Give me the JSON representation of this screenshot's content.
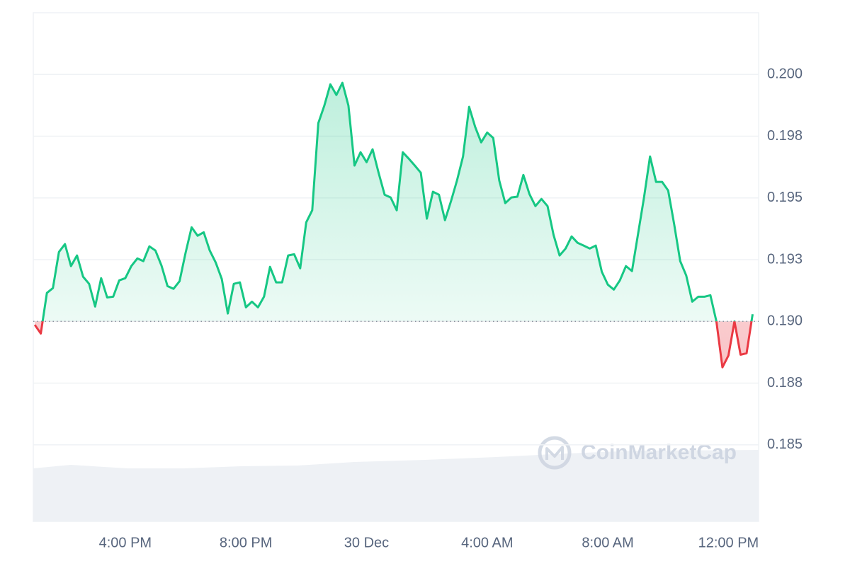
{
  "chart_data": {
    "type": "baseline-area",
    "watermark": "CoinMarketCap",
    "x": [
      13.0,
      13.2,
      13.4,
      13.6,
      13.8,
      14.0,
      14.2,
      14.4,
      14.6,
      14.8,
      15.0,
      15.2,
      15.4,
      15.6,
      15.8,
      16.0,
      16.2,
      16.4,
      16.6,
      16.8,
      17.0,
      17.2,
      17.4,
      17.6,
      17.8,
      18.0,
      18.2,
      18.4,
      18.6,
      18.8,
      19.0,
      19.2,
      19.4,
      19.6,
      19.8,
      20.0,
      20.2,
      20.4,
      20.6,
      20.8,
      21.0,
      21.2,
      21.4,
      21.6,
      21.8,
      22.0,
      22.2,
      22.4,
      22.6,
      22.8,
      23.0,
      23.2,
      23.4,
      23.6,
      23.8,
      24.0,
      24.2,
      24.4,
      24.6,
      24.8,
      25.0,
      25.2,
      25.4,
      25.6,
      25.8,
      26.0,
      26.2,
      26.4,
      26.6,
      26.8,
      27.0,
      27.2,
      27.4,
      27.6,
      27.8,
      28.0,
      28.2,
      28.4,
      28.6,
      28.8,
      29.0,
      29.2,
      29.4,
      29.6,
      29.8,
      30.0,
      30.2,
      30.4,
      30.6,
      30.8,
      31.0,
      31.2,
      31.4,
      31.6,
      31.8,
      32.0,
      32.2,
      32.4,
      32.6,
      32.8,
      33.0,
      33.2,
      33.4,
      33.6,
      33.8,
      34.0,
      34.2,
      34.4,
      34.6,
      34.8,
      35.0,
      35.2,
      35.4,
      35.6,
      35.8,
      36.0,
      36.2,
      36.4,
      36.6,
      36.8
    ],
    "values": [
      0.18986,
      0.18951,
      0.19115,
      0.19135,
      0.19281,
      0.19313,
      0.19224,
      0.19267,
      0.19181,
      0.19152,
      0.1906,
      0.19175,
      0.19097,
      0.191,
      0.19166,
      0.19175,
      0.19224,
      0.19255,
      0.19244,
      0.19304,
      0.19287,
      0.19226,
      0.19143,
      0.19132,
      0.19163,
      0.19278,
      0.19381,
      0.19347,
      0.19361,
      0.19287,
      0.19238,
      0.19172,
      0.19032,
      0.19152,
      0.19158,
      0.19057,
      0.1908,
      0.19057,
      0.191,
      0.19221,
      0.19158,
      0.19158,
      0.19267,
      0.19272,
      0.19215,
      0.19401,
      0.1945,
      0.19803,
      0.19874,
      0.1996,
      0.19917,
      0.19966,
      0.19874,
      0.19631,
      0.19685,
      0.19645,
      0.19697,
      0.19602,
      0.19513,
      0.19502,
      0.1945,
      0.19685,
      0.19659,
      0.19631,
      0.19602,
      0.19416,
      0.19525,
      0.19513,
      0.1941,
      0.19487,
      0.19571,
      0.19668,
      0.19869,
      0.19788,
      0.19725,
      0.19765,
      0.19743,
      0.19571,
      0.19479,
      0.19502,
      0.19505,
      0.19593,
      0.19516,
      0.19467,
      0.19496,
      0.19467,
      0.1935,
      0.19267,
      0.19295,
      0.19344,
      0.19318,
      0.19307,
      0.19295,
      0.19307,
      0.19201,
      0.19149,
      0.19129,
      0.19166,
      0.19224,
      0.19204,
      0.19353,
      0.19502,
      0.19668,
      0.19565,
      0.19565,
      0.1953,
      0.19393,
      0.19244,
      0.19186,
      0.1908,
      0.191,
      0.191,
      0.19106,
      0.19,
      0.18814,
      0.18862,
      0.19,
      0.18865,
      0.18871,
      0.19029
    ],
    "baseline": 0.19,
    "color_up": "#16c784",
    "color_down": "#ea3943",
    "xlim": [
      12.95,
      37
    ],
    "xticks": [
      {
        "value": 16,
        "label": "4:00 PM"
      },
      {
        "value": 20,
        "label": "8:00 PM"
      },
      {
        "value": 24,
        "label": "30 Dec"
      },
      {
        "value": 28,
        "label": "4:00 AM"
      },
      {
        "value": 32,
        "label": "8:00 AM"
      },
      {
        "value": 36,
        "label": "12:00 PM"
      }
    ],
    "ylim": [
      0.1819,
      0.2025
    ],
    "yticks": [
      {
        "value": 0.2,
        "label": "0.200"
      },
      {
        "value": 0.1975,
        "label": "0.198"
      },
      0.195,
      {
        "value": 0.1925,
        "label": "0.193"
      },
      {
        "value": 0.19,
        "label": "0.190"
      },
      {
        "value": 0.1875,
        "label": "0.188"
      },
      0.185
    ],
    "grid": true
  }
}
